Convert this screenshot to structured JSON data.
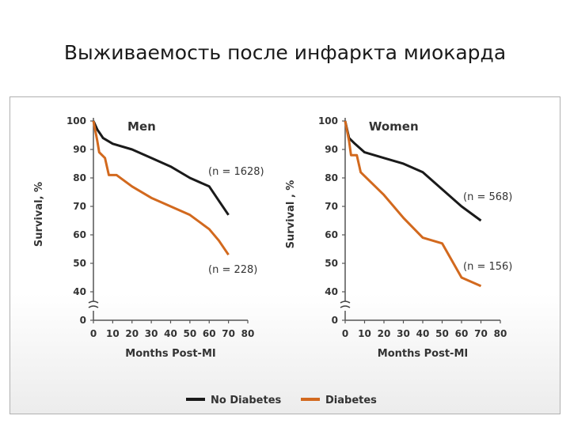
{
  "slide": {
    "title": "Выживаемость после инфаркта миокарда"
  },
  "legend": {
    "items": [
      {
        "label": "No Diabetes",
        "color": "#1a1a1a"
      },
      {
        "label": "Diabetes",
        "color": "#d2691e"
      }
    ]
  },
  "chart_data": [
    {
      "type": "line",
      "title": "Men",
      "xlabel": "Months Post-MI",
      "ylabel": "Survival, %",
      "xlim": [
        0,
        80
      ],
      "ylim": [
        40,
        100
      ],
      "axis_break": true,
      "x_ticks": [
        "0",
        "10",
        "20",
        "30",
        "40",
        "50",
        "60",
        "70",
        "80"
      ],
      "y_ticks": [
        "100",
        "90",
        "80",
        "70",
        "60",
        "50",
        "40",
        "0"
      ],
      "series": [
        {
          "name": "No Diabetes",
          "color": "#1a1a1a",
          "annotation": "(n = 1628)",
          "points": [
            [
              0,
              100
            ],
            [
              2,
              97
            ],
            [
              5,
              94
            ],
            [
              10,
              92
            ],
            [
              20,
              90
            ],
            [
              30,
              87
            ],
            [
              40,
              84
            ],
            [
              50,
              80
            ],
            [
              60,
              77
            ],
            [
              65,
              72
            ],
            [
              70,
              67
            ]
          ]
        },
        {
          "name": "Diabetes",
          "color": "#d2691e",
          "annotation": "(n = 228)",
          "points": [
            [
              0,
              100
            ],
            [
              2,
              93
            ],
            [
              3,
              89
            ],
            [
              6,
              87
            ],
            [
              8,
              81
            ],
            [
              12,
              81
            ],
            [
              20,
              77
            ],
            [
              30,
              73
            ],
            [
              40,
              70
            ],
            [
              50,
              67
            ],
            [
              60,
              62
            ],
            [
              65,
              58
            ],
            [
              70,
              53
            ]
          ]
        }
      ]
    },
    {
      "type": "line",
      "title": "Women",
      "xlabel": "Months Post-MI",
      "ylabel": "Survival , %",
      "xlim": [
        0,
        80
      ],
      "ylim": [
        40,
        100
      ],
      "axis_break": true,
      "x_ticks": [
        "0",
        "10",
        "20",
        "30",
        "40",
        "50",
        "60",
        "70",
        "80"
      ],
      "y_ticks": [
        "100",
        "90",
        "80",
        "70",
        "60",
        "50",
        "40",
        "0"
      ],
      "series": [
        {
          "name": "No Diabetes",
          "color": "#1a1a1a",
          "annotation": "(n = 568)",
          "points": [
            [
              0,
              100
            ],
            [
              2,
              94
            ],
            [
              5,
              92
            ],
            [
              10,
              89
            ],
            [
              20,
              87
            ],
            [
              30,
              85
            ],
            [
              40,
              82
            ],
            [
              50,
              76
            ],
            [
              60,
              70
            ],
            [
              70,
              65
            ]
          ]
        },
        {
          "name": "Diabetes",
          "color": "#d2691e",
          "annotation": "(n = 156)",
          "points": [
            [
              0,
              100
            ],
            [
              2,
              93
            ],
            [
              3,
              88
            ],
            [
              6,
              88
            ],
            [
              8,
              82
            ],
            [
              20,
              74
            ],
            [
              30,
              66
            ],
            [
              40,
              59
            ],
            [
              50,
              57
            ],
            [
              60,
              45
            ],
            [
              70,
              42
            ]
          ]
        }
      ]
    }
  ]
}
